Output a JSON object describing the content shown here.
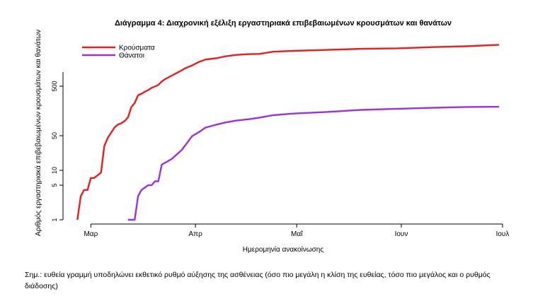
{
  "chart_data": {
    "type": "line",
    "title": "Διάγραμμα 4: Διαχρονική εξέλιξη εργαστηριακά επιβεβαιωμένων κρουσμάτων και θανάτων",
    "xlabel": "Ημερομηνία ανακοίνωσης",
    "ylabel": "Αριθμός εργαστηριακά επιβεβαιωμένων κρουσμάτων και θανάτων",
    "yscale": "log",
    "ylim": [
      1,
      5000
    ],
    "xlim": [
      "2020-02-23",
      "2020-07-01"
    ],
    "x_ticks": [
      {
        "date": "2020-03-01",
        "label": "Μαρ"
      },
      {
        "date": "2020-04-01",
        "label": "Απρ"
      },
      {
        "date": "2020-05-01",
        "label": "Μαΐ"
      },
      {
        "date": "2020-06-01",
        "label": "Ιουν"
      },
      {
        "date": "2020-07-01",
        "label": "Ιουλ"
      }
    ],
    "y_ticks": [
      1,
      5,
      10,
      50,
      500
    ],
    "legend_position": "top-left",
    "series": [
      {
        "name": "Κρούσματα",
        "color": "#ee1c1c",
        "points": [
          [
            "2020-02-26",
            1
          ],
          [
            "2020-02-27",
            3
          ],
          [
            "2020-02-28",
            4
          ],
          [
            "2020-02-29",
            4
          ],
          [
            "2020-03-01",
            7
          ],
          [
            "2020-03-02",
            7
          ],
          [
            "2020-03-04",
            9
          ],
          [
            "2020-03-05",
            31
          ],
          [
            "2020-03-06",
            45
          ],
          [
            "2020-03-08",
            73
          ],
          [
            "2020-03-09",
            84
          ],
          [
            "2020-03-10",
            89
          ],
          [
            "2020-03-11",
            99
          ],
          [
            "2020-03-12",
            117
          ],
          [
            "2020-03-13",
            190
          ],
          [
            "2020-03-14",
            228
          ],
          [
            "2020-03-15",
            331
          ],
          [
            "2020-03-16",
            352
          ],
          [
            "2020-03-17",
            387
          ],
          [
            "2020-03-18",
            418
          ],
          [
            "2020-03-19",
            464
          ],
          [
            "2020-03-20",
            495
          ],
          [
            "2020-03-21",
            530
          ],
          [
            "2020-03-22",
            624
          ],
          [
            "2020-03-23",
            695
          ],
          [
            "2020-03-25",
            821
          ],
          [
            "2020-03-27",
            966
          ],
          [
            "2020-03-29",
            1156
          ],
          [
            "2020-03-31",
            1314
          ],
          [
            "2020-04-02",
            1544
          ],
          [
            "2020-04-04",
            1735
          ],
          [
            "2020-04-07",
            1832
          ],
          [
            "2020-04-10",
            2011
          ],
          [
            "2020-04-13",
            2145
          ],
          [
            "2020-04-17",
            2224
          ],
          [
            "2020-04-20",
            2245
          ],
          [
            "2020-04-24",
            2490
          ],
          [
            "2020-04-30",
            2591
          ],
          [
            "2020-05-10",
            2710
          ],
          [
            "2020-05-20",
            2850
          ],
          [
            "2020-05-31",
            2917
          ],
          [
            "2020-06-10",
            3088
          ],
          [
            "2020-06-20",
            3203
          ],
          [
            "2020-06-30",
            3432
          ]
        ]
      },
      {
        "name": "Θάνατοι",
        "color": "#9b30e6",
        "points": [
          [
            "2020-03-12",
            1
          ],
          [
            "2020-03-14",
            1
          ],
          [
            "2020-03-15",
            3
          ],
          [
            "2020-03-16",
            4
          ],
          [
            "2020-03-18",
            5
          ],
          [
            "2020-03-19",
            5
          ],
          [
            "2020-03-20",
            6
          ],
          [
            "2020-03-21",
            6
          ],
          [
            "2020-03-22",
            13
          ],
          [
            "2020-03-25",
            17
          ],
          [
            "2020-03-28",
            26
          ],
          [
            "2020-03-31",
            49
          ],
          [
            "2020-04-02",
            59
          ],
          [
            "2020-04-04",
            73
          ],
          [
            "2020-04-07",
            83
          ],
          [
            "2020-04-10",
            93
          ],
          [
            "2020-04-13",
            101
          ],
          [
            "2020-04-17",
            108
          ],
          [
            "2020-04-20",
            116
          ],
          [
            "2020-04-24",
            130
          ],
          [
            "2020-04-30",
            140
          ],
          [
            "2020-05-10",
            151
          ],
          [
            "2020-05-20",
            166
          ],
          [
            "2020-05-31",
            175
          ],
          [
            "2020-06-10",
            183
          ],
          [
            "2020-06-20",
            190
          ],
          [
            "2020-06-30",
            192
          ]
        ]
      }
    ]
  },
  "note": "Σημ.: ευθεία γραμμή υποδηλώνει εκθετικό ρυθμό αύξησης της ασθένειας (όσο πιο μεγάλη η κλίση της ευθείας, τόσο πιο μεγάλος και ο ρυθμός διάδοσης)"
}
